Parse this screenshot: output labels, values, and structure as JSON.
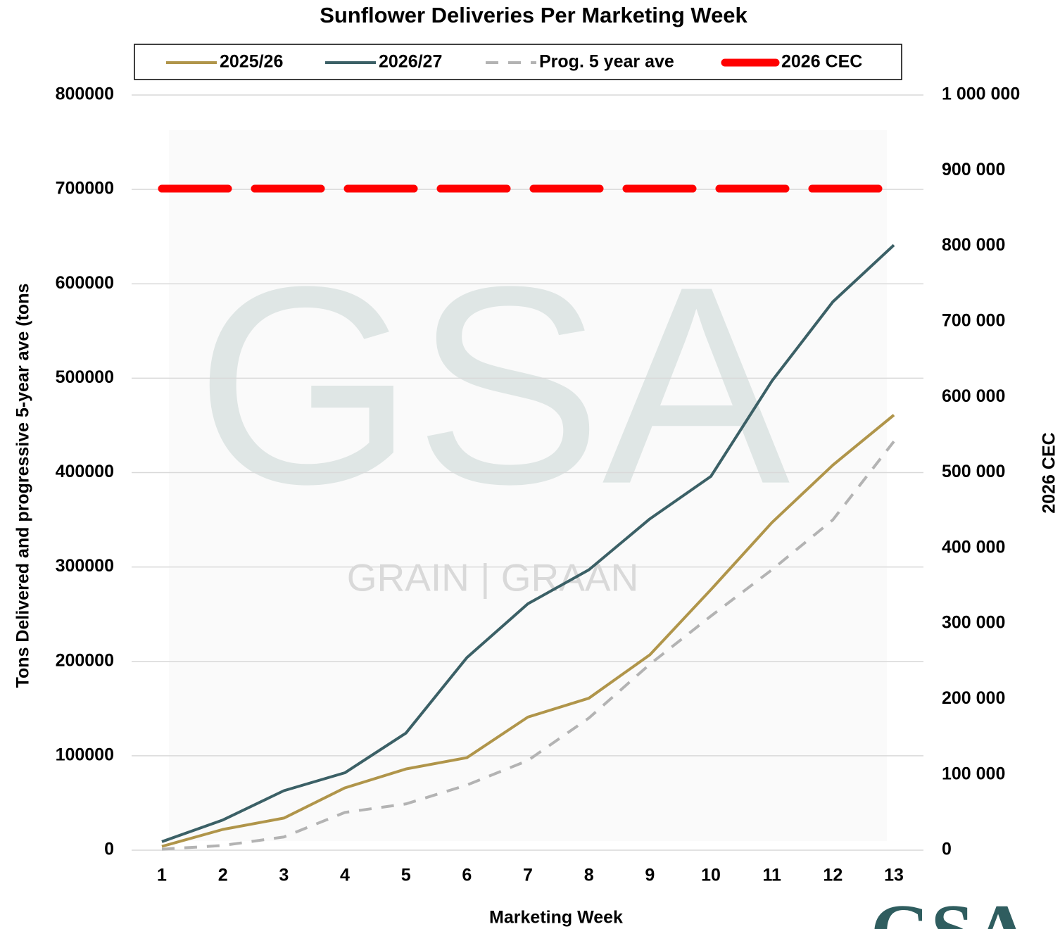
{
  "chart_data": {
    "type": "line",
    "title": "Sunflower Deliveries Per Marketing Week",
    "x_label": "Marketing Week",
    "y_label": "Tons Delivered and progressive 5-year ave (tons",
    "y2_label": "2026 CEC",
    "watermark": [
      "GSA",
      "GRAIN | GRAAN"
    ],
    "logo": "GSA",
    "categories": [
      "1",
      "2",
      "3",
      "4",
      "5",
      "6",
      "7",
      "8",
      "9",
      "10",
      "11",
      "12",
      "13"
    ],
    "series": [
      {
        "name": "2025/26",
        "color": "#b0954a",
        "style": "solid",
        "values": [
          4000,
          22000,
          34000,
          66000,
          86000,
          98000,
          141000,
          161000,
          207000,
          276000,
          347000,
          408000,
          461000
        ]
      },
      {
        "name": "2026/27",
        "color": "#3b6066",
        "style": "solid",
        "values": [
          9000,
          32000,
          63000,
          82000,
          124000,
          204000,
          261000,
          297000,
          351000,
          396000,
          497000,
          581000,
          641000
        ]
      },
      {
        "name": "Prog. 5 year ave",
        "color": "#b3b3b3",
        "style": "dashed",
        "values": [
          1000,
          5000,
          14000,
          40000,
          49000,
          69000,
          95000,
          140000,
          197000,
          248000,
          297000,
          350000,
          433000
        ]
      },
      {
        "name": "2026 CEC",
        "color": "#ff0000",
        "style": "thick-dashed",
        "axis": "y2",
        "values": [
          876000,
          876000,
          876000,
          876000,
          876000,
          876000,
          876000,
          876000,
          876000,
          876000,
          876000,
          876000,
          876000
        ]
      }
    ],
    "ylim": [
      0,
      800000
    ],
    "yticks": [
      0,
      100000,
      200000,
      300000,
      400000,
      500000,
      600000,
      700000,
      800000
    ],
    "y2lim": [
      0,
      1000000
    ],
    "y2ticks": [
      {
        "value": 0,
        "label": "0"
      },
      {
        "value": 100000,
        "label": "100 000"
      },
      {
        "value": 200000,
        "label": "200 000"
      },
      {
        "value": 300000,
        "label": "300 000"
      },
      {
        "value": 400000,
        "label": "400 000"
      },
      {
        "value": 500000,
        "label": "500 000"
      },
      {
        "value": 600000,
        "label": "600 000"
      },
      {
        "value": 700000,
        "label": "700 000"
      },
      {
        "value": 800000,
        "label": "800 000"
      },
      {
        "value": 900000,
        "label": "900 000"
      },
      {
        "value": 1000000,
        "label": "1 000 000"
      }
    ],
    "grid": true,
    "legend": "top"
  }
}
